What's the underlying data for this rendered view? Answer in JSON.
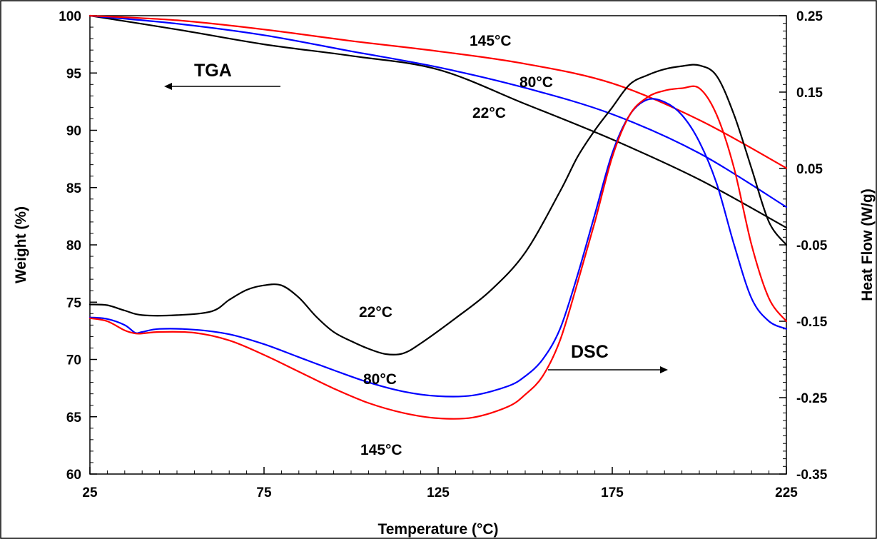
{
  "chart_data": {
    "type": "line",
    "xlabel": "Temperature (°C)",
    "ylabel_left": "Weight (%)",
    "ylabel_right": "Heat Flow (W/g)",
    "xlim": [
      25,
      225
    ],
    "ylim_left": [
      60,
      100
    ],
    "ylim_right": [
      -0.35,
      0.25
    ],
    "x_ticks": [
      "25",
      "75",
      "125",
      "175",
      "225"
    ],
    "y_left_ticks": [
      "60",
      "65",
      "70",
      "75",
      "80",
      "85",
      "90",
      "95",
      "100"
    ],
    "y_right_ticks": [
      "-0.35",
      "-0.25",
      "-0.15",
      "-0.05",
      "0.05",
      "0.15",
      "0.25"
    ],
    "colors": {
      "22C": "#000000",
      "80C": "#0000ff",
      "145C": "#ff0000"
    },
    "series": [
      {
        "group": "TGA",
        "axis": "left",
        "color": "#000000",
        "label": "22°C",
        "x": [
          25,
          50,
          75,
          100,
          125,
          150,
          175,
          200,
          225
        ],
        "y": [
          100,
          98.8,
          97.5,
          96.5,
          95.3,
          92.3,
          89.2,
          85.7,
          81.5
        ]
      },
      {
        "group": "TGA",
        "axis": "left",
        "color": "#0000ff",
        "label": "80°C",
        "x": [
          25,
          50,
          75,
          100,
          125,
          150,
          175,
          200,
          225
        ],
        "y": [
          100,
          99.3,
          98.3,
          96.9,
          95.5,
          93.7,
          91.4,
          88.0,
          83.3
        ]
      },
      {
        "group": "TGA",
        "axis": "left",
        "color": "#ff0000",
        "label": "145°C",
        "x": [
          25,
          50,
          75,
          100,
          125,
          150,
          175,
          200,
          225
        ],
        "y": [
          100,
          99.6,
          98.8,
          97.8,
          96.9,
          95.8,
          94.1,
          90.9,
          86.7
        ]
      },
      {
        "group": "DSC",
        "axis": "right",
        "color": "#000000",
        "label": "22°C",
        "x": [
          25,
          30,
          35,
          40,
          50,
          60,
          65,
          70,
          75,
          80,
          85,
          90,
          95,
          100,
          105,
          110,
          115,
          120,
          130,
          140,
          150,
          160,
          165,
          170,
          175,
          180,
          185,
          190,
          195,
          200,
          205,
          210,
          215,
          220,
          225
        ],
        "y": [
          -0.128,
          -0.129,
          -0.136,
          -0.142,
          -0.142,
          -0.137,
          -0.122,
          -0.109,
          -0.103,
          -0.103,
          -0.119,
          -0.144,
          -0.164,
          -0.176,
          -0.186,
          -0.193,
          -0.192,
          -0.179,
          -0.146,
          -0.11,
          -0.06,
          0.02,
          0.065,
          0.1,
          0.13,
          0.16,
          0.172,
          0.18,
          0.184,
          0.185,
          0.171,
          0.12,
          0.05,
          -0.02,
          -0.05
        ]
      },
      {
        "group": "DSC",
        "axis": "right",
        "color": "#0000ff",
        "label": "80°C",
        "x": [
          25,
          30,
          35,
          38,
          40,
          45,
          55,
          65,
          75,
          85,
          95,
          105,
          115,
          125,
          135,
          145,
          150,
          155,
          160,
          165,
          170,
          175,
          180,
          185,
          190,
          195,
          200,
          205,
          210,
          215,
          220,
          225
        ],
        "y": [
          -0.145,
          -0.147,
          -0.155,
          -0.165,
          -0.164,
          -0.16,
          -0.161,
          -0.167,
          -0.18,
          -0.197,
          -0.214,
          -0.23,
          -0.242,
          -0.248,
          -0.247,
          -0.235,
          -0.222,
          -0.2,
          -0.16,
          -0.09,
          -0.01,
          0.07,
          0.12,
          0.14,
          0.137,
          0.12,
          0.085,
          0.03,
          -0.05,
          -0.12,
          -0.15,
          -0.16
        ]
      },
      {
        "group": "DSC",
        "axis": "right",
        "color": "#ff0000",
        "label": "145°C",
        "x": [
          25,
          30,
          35,
          38,
          40,
          45,
          55,
          65,
          75,
          85,
          95,
          105,
          115,
          125,
          135,
          145,
          150,
          155,
          160,
          165,
          170,
          175,
          180,
          185,
          190,
          195,
          200,
          205,
          210,
          215,
          220,
          225
        ],
        "y": [
          -0.146,
          -0.15,
          -0.162,
          -0.166,
          -0.166,
          -0.164,
          -0.165,
          -0.175,
          -0.194,
          -0.216,
          -0.238,
          -0.257,
          -0.27,
          -0.277,
          -0.276,
          -0.262,
          -0.246,
          -0.222,
          -0.175,
          -0.1,
          -0.02,
          0.065,
          0.12,
          0.143,
          0.152,
          0.155,
          0.155,
          0.12,
          0.05,
          -0.05,
          -0.12,
          -0.15
        ]
      }
    ],
    "annotations": {
      "tga_label": "TGA",
      "dsc_label": "DSC",
      "tga_22": "22°C",
      "tga_80": "80°C",
      "tga_145": "145°C",
      "dsc_22": "22°C",
      "dsc_80": "80°C",
      "dsc_145": "145°C"
    }
  }
}
